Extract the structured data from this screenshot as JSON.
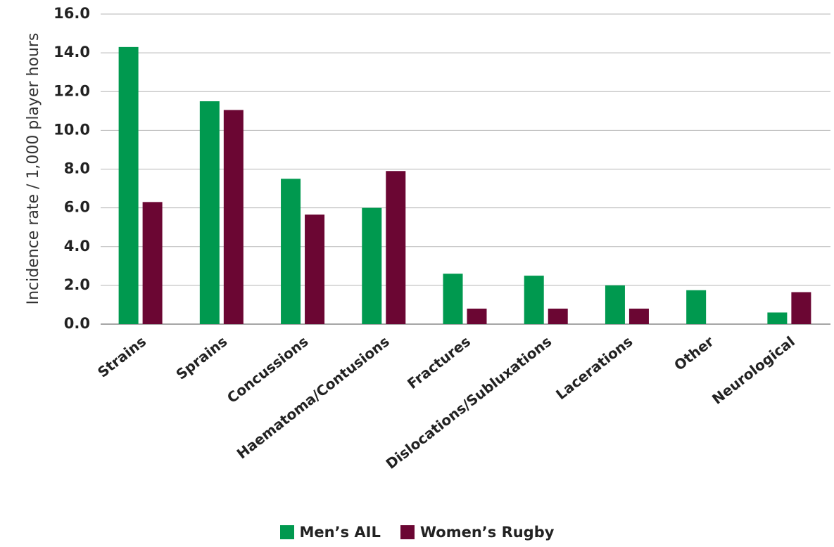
{
  "chart_data": {
    "type": "bar",
    "title": "",
    "xlabel": "",
    "ylabel": "Incidence rate / 1,000 player hours",
    "ylim": [
      0,
      16
    ],
    "yticks": [
      "0.0",
      "2.0",
      "4.0",
      "6.0",
      "8.0",
      "10.0",
      "12.0",
      "14.0",
      "16.0"
    ],
    "grid": true,
    "legend_position": "bottom",
    "categories": [
      "Strains",
      "Sprains",
      "Concussions",
      "Haematoma/Contusions",
      "Fractures",
      "Dislocations/Subluxations",
      "Lacerations",
      "Other",
      "Neurological"
    ],
    "series": [
      {
        "name": "Men’s AIL",
        "color": "#00994f",
        "values": [
          14.3,
          11.5,
          7.5,
          6.0,
          2.6,
          2.5,
          2.0,
          1.75,
          0.6
        ]
      },
      {
        "name": "Women’s Rugby",
        "color": "#6b0633",
        "values": [
          6.3,
          11.05,
          5.65,
          7.9,
          0.8,
          0.8,
          0.8,
          0,
          1.65
        ]
      }
    ]
  }
}
